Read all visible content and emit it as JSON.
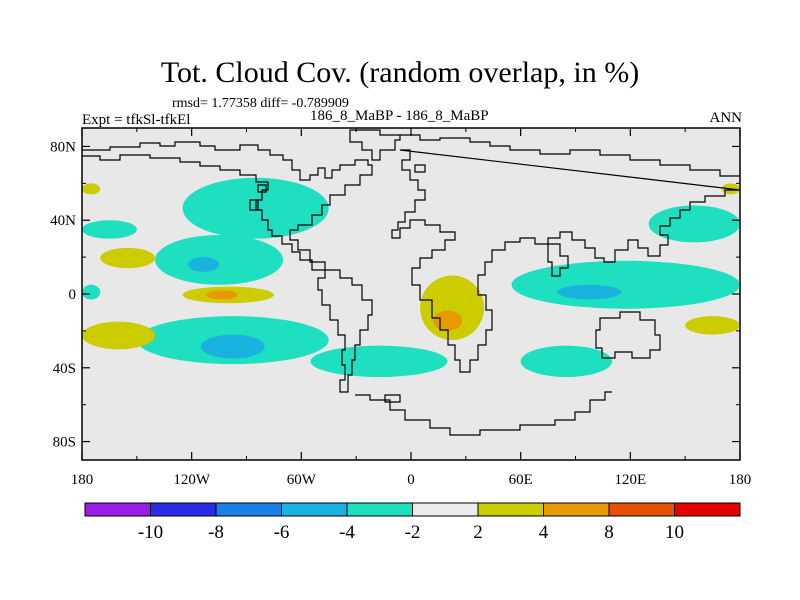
{
  "header": {
    "title": "Tot. Cloud Cov. (random overlap, in %)",
    "stats": "rmsd= 1.77358 diff= -0.789909",
    "expt": "Expt = tfkSl-tfkEl",
    "case": "186_8_MaBP - 186_8_MaBP",
    "season": "ANN"
  },
  "chart_data": {
    "type": "heatmap",
    "title": "Tot. Cloud Cov. (random overlap, in %)",
    "projection": "cylindrical-equidistant",
    "xlim": [
      -180,
      180
    ],
    "ylim": [
      -90,
      90
    ],
    "x_ticks": [
      {
        "value": -180,
        "label": "180"
      },
      {
        "value": -120,
        "label": "120W"
      },
      {
        "value": -60,
        "label": "60W"
      },
      {
        "value": 0,
        "label": "0"
      },
      {
        "value": 60,
        "label": "60E"
      },
      {
        "value": 120,
        "label": "120E"
      },
      {
        "value": 180,
        "label": "180"
      }
    ],
    "y_ticks": [
      {
        "value": 80,
        "label": "80N"
      },
      {
        "value": 40,
        "label": "40N"
      },
      {
        "value": 0,
        "label": "0"
      },
      {
        "value": -40,
        "label": "40S"
      },
      {
        "value": -80,
        "label": "80S"
      }
    ],
    "background_color": "#e8e8e8",
    "coastline_color": "#000000",
    "colorbar": {
      "levels": [
        -10,
        -8,
        -6,
        -4,
        -2,
        2,
        4,
        8,
        10
      ],
      "labels": [
        "-10",
        "-8",
        "-6",
        "-4",
        "-2",
        "2",
        "4",
        "8",
        "10"
      ],
      "colors": [
        "#9b1ee8",
        "#2b2be8",
        "#1a80e8",
        "#1ab3e0",
        "#1ee0c0",
        "#ebebeb",
        "#cccc00",
        "#e69a00",
        "#e65000",
        "#e60000"
      ]
    },
    "regions": [
      {
        "level": "-4 to -2",
        "color": "#1ee0c0",
        "lon": [
          -125,
          -45
        ],
        "lat": [
          30,
          63
        ]
      },
      {
        "level": "-4 to -2",
        "color": "#1ee0c0",
        "lon": [
          -180,
          -150
        ],
        "lat": [
          30,
          40
        ]
      },
      {
        "level": "-4 to -2",
        "color": "#1ee0c0",
        "lon": [
          -140,
          -70
        ],
        "lat": [
          5,
          32
        ]
      },
      {
        "level": "-6 to -4",
        "color": "#1ab3e0",
        "lon": [
          -122,
          -105
        ],
        "lat": [
          12,
          20
        ]
      },
      {
        "level": "-4 to -2",
        "color": "#1ee0c0",
        "lon": [
          -180,
          -170
        ],
        "lat": [
          -3,
          5
        ]
      },
      {
        "level": "-4 to -2",
        "color": "#1ee0c0",
        "lon": [
          -150,
          -45
        ],
        "lat": [
          -38,
          -12
        ]
      },
      {
        "level": "-6 to -4",
        "color": "#1ab3e0",
        "lon": [
          -115,
          -80
        ],
        "lat": [
          -35,
          -22
        ]
      },
      {
        "level": "-4 to -2",
        "color": "#1ee0c0",
        "lon": [
          -55,
          20
        ],
        "lat": [
          -45,
          -28
        ]
      },
      {
        "level": "-4 to -2",
        "color": "#1ee0c0",
        "lon": [
          55,
          180
        ],
        "lat": [
          -8,
          18
        ]
      },
      {
        "level": "-6 to -4",
        "color": "#1ab3e0",
        "lon": [
          80,
          115
        ],
        "lat": [
          -3,
          5
        ]
      },
      {
        "level": "-4 to -2",
        "color": "#1ee0c0",
        "lon": [
          60,
          110
        ],
        "lat": [
          -45,
          -28
        ]
      },
      {
        "level": "-4 to -2",
        "color": "#1ee0c0",
        "lon": [
          130,
          180
        ],
        "lat": [
          28,
          48
        ]
      },
      {
        "level": "2 to 4",
        "color": "#cccc00",
        "lon": [
          -170,
          -140
        ],
        "lat": [
          14,
          25
        ]
      },
      {
        "level": "2 to 4",
        "color": "#cccc00",
        "lon": [
          -180,
          -140
        ],
        "lat": [
          -30,
          -15
        ]
      },
      {
        "level": "2 to 4",
        "color": "#cccc00",
        "lon": [
          -125,
          -75
        ],
        "lat": [
          -5,
          4
        ]
      },
      {
        "level": "4 to 8",
        "color": "#e69a00",
        "lon": [
          -112,
          -95
        ],
        "lat": [
          -3,
          2
        ]
      },
      {
        "level": "2 to 4",
        "color": "#cccc00",
        "lon": [
          5,
          40
        ],
        "lat": [
          -25,
          10
        ]
      },
      {
        "level": "4 to 8",
        "color": "#e69a00",
        "lon": [
          12,
          28
        ],
        "lat": [
          -20,
          -9
        ]
      },
      {
        "level": "2 to 4",
        "color": "#cccc00",
        "lon": [
          150,
          180
        ],
        "lat": [
          -22,
          -12
        ]
      },
      {
        "level": "2 to 4",
        "color": "#cccc00",
        "lon": [
          -180,
          -170
        ],
        "lat": [
          54,
          60
        ]
      },
      {
        "level": "2 to 4",
        "color": "#cccc00",
        "lon": [
          170,
          180
        ],
        "lat": [
          54,
          60
        ]
      }
    ]
  }
}
